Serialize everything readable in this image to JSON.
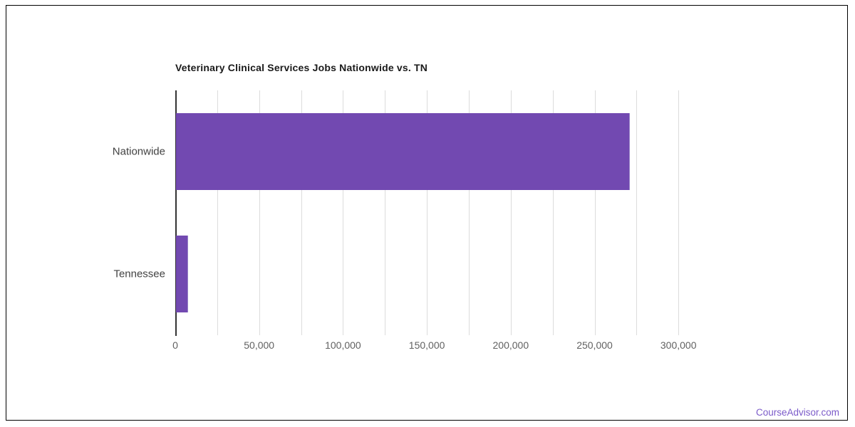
{
  "frame": {
    "border_color": "#000000"
  },
  "watermark": {
    "text": "CourseAdvisor.com",
    "color": "#7B5BC9"
  },
  "chart_data": {
    "type": "bar",
    "orientation": "horizontal",
    "title": "Veterinary Clinical Services Jobs Nationwide vs. TN",
    "categories": [
      "Nationwide",
      "Tennessee"
    ],
    "values": [
      270600,
      7400
    ],
    "xlim": [
      0,
      325000
    ],
    "x_major_tick_step": 50000,
    "x_minor_tick_step": 25000,
    "x_tick_labels": [
      "0",
      "50,000",
      "100,000",
      "150,000",
      "200,000",
      "250,000",
      "300,000"
    ],
    "grid": "vertical-minor-gridlines",
    "legend": "none",
    "colors": {
      "bar_fill": "#7249B1",
      "bar_edge": "#9A85C9",
      "axis_line": "#333333",
      "gridline": "#DCDCDC",
      "tick_label": "#616161",
      "category_label": "#424242",
      "title": "#1A1A1A"
    }
  }
}
